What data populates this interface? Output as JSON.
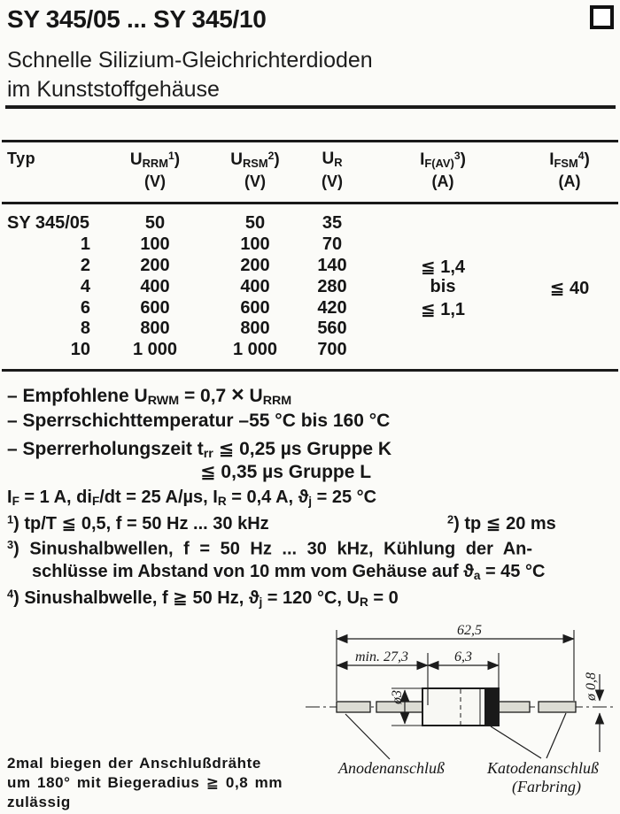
{
  "page": {
    "title": "SY 345/05 ... SY 345/10",
    "subtitle_line1": "Schnelle Silizium-Gleichrichterdioden",
    "subtitle_line2": "im Kunststoffgehäuse"
  },
  "table": {
    "col_typ": "Typ",
    "columns": [
      {
        "symbol": "U<sub>RRM</sub><sup>1</sup>)",
        "unit": "(V)"
      },
      {
        "symbol": "U<sub>RSM</sub><sup>2</sup>)",
        "unit": "(V)"
      },
      {
        "symbol": "U<sub>R</sub>",
        "unit": "(V)"
      },
      {
        "symbol": "I<sub>F(AV)</sub><sup>3</sup>)",
        "unit": "(A)"
      },
      {
        "symbol": "I<sub>FSM</sub><sup>4</sup>)",
        "unit": "(A)"
      }
    ],
    "rows": [
      {
        "typ": "SY 345/05",
        "urrm": "50",
        "ursm": "50",
        "ur": "35",
        "ifav": "",
        "ifsm": ""
      },
      {
        "typ": "1",
        "urrm": "100",
        "ursm": "100",
        "ur": "70",
        "ifav": "",
        "ifsm": ""
      },
      {
        "typ": "2",
        "urrm": "200",
        "ursm": "200",
        "ur": "140",
        "ifav": "≦ 1,4",
        "ifsm": ""
      },
      {
        "typ": "4",
        "urrm": "400",
        "ursm": "400",
        "ur": "280",
        "ifav": "bis",
        "ifsm": "≦ 40"
      },
      {
        "typ": "6",
        "urrm": "600",
        "ursm": "600",
        "ur": "420",
        "ifav": "≦ 1,1",
        "ifsm": ""
      },
      {
        "typ": "8",
        "urrm": "800",
        "ursm": "800",
        "ur": "560",
        "ifav": "",
        "ifsm": ""
      },
      {
        "typ": "10",
        "urrm": "1 000",
        "ursm": "1 000",
        "ur": "700",
        "ifav": "",
        "ifsm": ""
      }
    ]
  },
  "notes": {
    "n1_html": "– Empfohlene U<sub>RWM</sub> = 0,7 <span class=\"bigx\">×</span> U<sub>RRM</sub>",
    "n2": "– Sperrschichttemperatur –55 °C bis 160 °C",
    "n3_html": "– Sperrerholungszeit t<sub>rr</sub> ≦ 0,25 µs Gruppe K",
    "n3b": "≦ 0,35 µs Gruppe L",
    "conditions_html": "I<sub>F</sub> = 1 A, di<sub>F</sub>/dt = 25 A/µs, I<sub>R</sub> = 0,4 A, ϑ<sub>j</sub> = 25 °C"
  },
  "footnotes": {
    "fn1_html": "<sup>1</sup>) tp/T ≦ 0,5, f = 50 Hz ... 30 kHz",
    "fn2_html": "<sup>2</sup>) tp ≦ 20 ms",
    "fn3_line1_html": "<sup>3</sup>) Sinushalbwellen,  f = 50 Hz ... 30 kHz,  Kühlung  der  An-",
    "fn3_line2_html": "schlüsse im Abstand von 10 mm vom Gehäuse auf ϑ<sub>a</sub> = 45 °C",
    "fn4_html": "<sup>4</sup>) Sinushalbwelle, f ≧ 50 Hz, ϑ<sub>j</sub> = 120 °C, U<sub>R</sub> = 0"
  },
  "drawing": {
    "dim_total": "62,5",
    "dim_lead": "min. 27,3",
    "dim_body": "6,3",
    "dim_body_dia": "ø3",
    "dim_wire_dia": "ø 0,8",
    "label_anode": "Anodenanschluß",
    "label_cathode": "Katodenanschluß",
    "label_cathode2": "(Farbring)"
  },
  "bend_note": {
    "line1": "2mal biegen der Anschlußdrähte",
    "line2": "um 180° mit Biegeradius ≧ 0,8 mm",
    "line3": "zulässig"
  }
}
